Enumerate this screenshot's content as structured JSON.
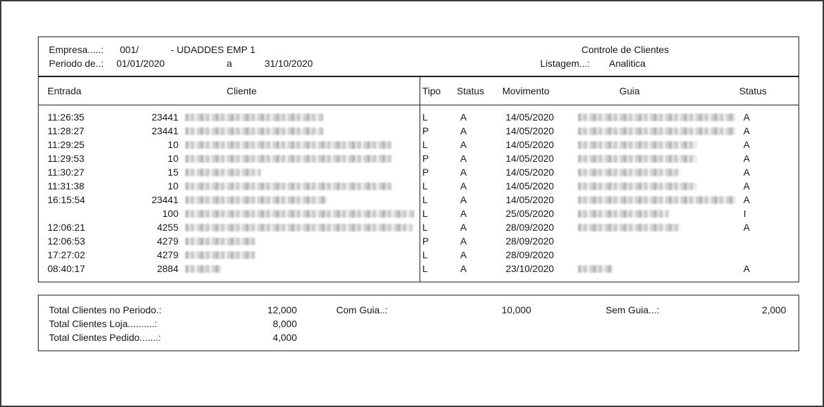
{
  "header": {
    "empresa_label": "Empresa.....:",
    "empresa_code": "001/",
    "empresa_name": "- UDADDES EMP 1",
    "periodo_label": "Periodo de..:",
    "periodo_from": "01/01/2020",
    "periodo_sep": "a",
    "periodo_to": "31/10/2020",
    "title": "Controle de Clientes",
    "listagem_label": "Listagem...:",
    "listagem_value": "Analitica"
  },
  "columns": {
    "entrada": "Entrada",
    "cliente": "Cliente",
    "tipo": "Tipo",
    "status": "Status",
    "movimento": "Movimento",
    "guia": "Guia",
    "status2": "Status"
  },
  "rows": [
    {
      "entrada": "11:26:35",
      "codigo": "23441",
      "cliente_redacted_w": 200,
      "tipo": "L",
      "status": "A",
      "movimento": "14/05/2020",
      "guia_redacted_w": 228,
      "status2": "A"
    },
    {
      "entrada": "11:28:27",
      "codigo": "23441",
      "cliente_redacted_w": 200,
      "tipo": "P",
      "status": "A",
      "movimento": "14/05/2020",
      "guia_redacted_w": 228,
      "status2": "A"
    },
    {
      "entrada": "11:29:25",
      "codigo": "10",
      "cliente_redacted_w": 300,
      "tipo": "L",
      "status": "A",
      "movimento": "14/05/2020",
      "guia_redacted_w": 172,
      "status2": "A"
    },
    {
      "entrada": "11:29:53",
      "codigo": "10",
      "cliente_redacted_w": 300,
      "tipo": "P",
      "status": "A",
      "movimento": "14/05/2020",
      "guia_redacted_w": 172,
      "status2": "A"
    },
    {
      "entrada": "11:30:27",
      "codigo": "15",
      "cliente_redacted_w": 110,
      "tipo": "P",
      "status": "A",
      "movimento": "14/05/2020",
      "guia_redacted_w": 148,
      "status2": "A"
    },
    {
      "entrada": "11:31:38",
      "codigo": "10",
      "cliente_redacted_w": 300,
      "tipo": "L",
      "status": "A",
      "movimento": "14/05/2020",
      "guia_redacted_w": 172,
      "status2": "A"
    },
    {
      "entrada": "16:15:54",
      "codigo": "23441",
      "cliente_redacted_w": 205,
      "tipo": "L",
      "status": "A",
      "movimento": "14/05/2020",
      "guia_redacted_w": 228,
      "status2": "A"
    },
    {
      "entrada": "",
      "codigo": "100",
      "cliente_redacted_w": 332,
      "tipo": "L",
      "status": "A",
      "movimento": "25/05/2020",
      "guia_redacted_w": 132,
      "status2": "I"
    },
    {
      "entrada": "12:06:21",
      "codigo": "4255",
      "cliente_redacted_w": 330,
      "tipo": "L",
      "status": "A",
      "movimento": "28/09/2020",
      "guia_redacted_w": 148,
      "status2": "A"
    },
    {
      "entrada": "12:06:53",
      "codigo": "4279",
      "cliente_redacted_w": 102,
      "tipo": "P",
      "status": "A",
      "movimento": "28/09/2020",
      "guia_redacted_w": 0,
      "status2": ""
    },
    {
      "entrada": "17:27:02",
      "codigo": "4279",
      "cliente_redacted_w": 102,
      "tipo": "L",
      "status": "A",
      "movimento": "28/09/2020",
      "guia_redacted_w": 0,
      "status2": ""
    },
    {
      "entrada": "08:40:17",
      "codigo": "2884",
      "cliente_redacted_w": 52,
      "tipo": "L",
      "status": "A",
      "movimento": "23/10/2020",
      "guia_redacted_w": 50,
      "status2": "A"
    }
  ],
  "totals": {
    "periodo_label": "Total Clientes no Periodo.:",
    "periodo_value": "12,000",
    "loja_label": "Total Clientes Loja..........:",
    "loja_value": "8,000",
    "pedido_label": "Total Clientes Pedido.......:",
    "pedido_value": "4,000",
    "com_guia_label": "Com Guia..:",
    "com_guia_value": "10,000",
    "sem_guia_label": "Sem Guia...:",
    "sem_guia_value": "2,000"
  }
}
